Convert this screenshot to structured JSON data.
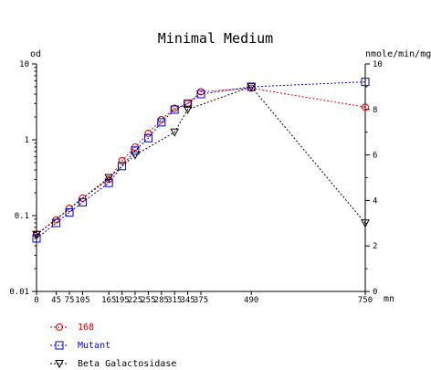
{
  "chart_data": {
    "type": "line",
    "title": "Minimal Medium",
    "y_left_label": "od",
    "y_right_label": "nmole/min/mg",
    "x_unit": "mn",
    "x_ticks": [
      0,
      45,
      75,
      105,
      165,
      195,
      225,
      255,
      285,
      315,
      345,
      375,
      490,
      750
    ],
    "x_tick_labels": [
      "0",
      "45",
      "75",
      "105",
      "165",
      "195",
      "225",
      "255",
      "285",
      "315",
      "345",
      "375",
      "490",
      "750"
    ],
    "y_left_scale": "log",
    "y_left_ticks": [
      {
        "value": 0.01,
        "label": "0.01"
      },
      {
        "value": 0.1,
        "label": "0.1"
      },
      {
        "value": 1,
        "label": "1"
      },
      {
        "value": 10,
        "label": "10"
      }
    ],
    "y_right_ticks": [
      {
        "value": 0,
        "label": "0"
      },
      {
        "value": 2,
        "label": "2"
      },
      {
        "value": 4,
        "label": "4"
      },
      {
        "value": 6,
        "label": "6"
      },
      {
        "value": 8,
        "label": "8"
      },
      {
        "value": 10,
        "label": "10"
      }
    ],
    "xlim": [
      0,
      750
    ],
    "ylim_left": [
      0.01,
      10
    ],
    "ylim_right": [
      0,
      10
    ],
    "legend_position": "bottom-left",
    "series": [
      {
        "name": "168",
        "axis": "left",
        "marker": "circle",
        "color": "#e00000",
        "x": [
          0,
          45,
          75,
          105,
          165,
          195,
          225,
          255,
          285,
          315,
          345,
          375,
          490,
          750
        ],
        "y": [
          0.057,
          0.088,
          0.125,
          0.17,
          0.3,
          0.53,
          0.8,
          1.22,
          1.85,
          2.6,
          3.0,
          4.3,
          4.8,
          2.7
        ]
      },
      {
        "name": "Mutant",
        "axis": "left",
        "marker": "square",
        "color": "#0000e0",
        "x": [
          0,
          45,
          75,
          105,
          165,
          195,
          225,
          255,
          285,
          315,
          345,
          375,
          490,
          750
        ],
        "y": [
          0.05,
          0.08,
          0.11,
          0.15,
          0.27,
          0.45,
          0.72,
          1.05,
          1.7,
          2.5,
          3.0,
          4.0,
          5.0,
          5.8
        ]
      },
      {
        "name": "Beta Galactosidase",
        "axis": "right",
        "marker": "triangle-down",
        "color": "#000000",
        "x": [
          0,
          165,
          225,
          315,
          345,
          490,
          750
        ],
        "y": [
          2.5,
          5.0,
          6.0,
          7.0,
          8.0,
          9.0,
          3.0
        ]
      }
    ]
  }
}
